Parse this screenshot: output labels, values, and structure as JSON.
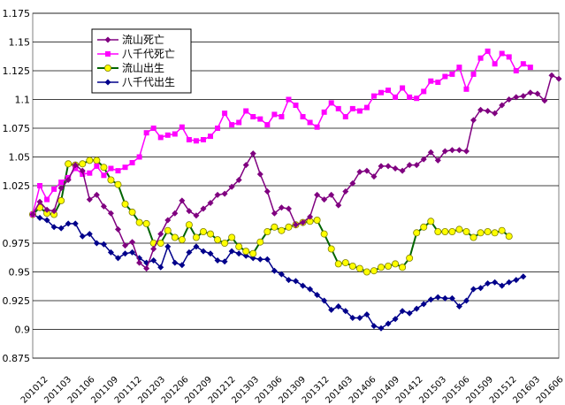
{
  "chart_data": {
    "type": "line",
    "ylim": [
      0.875,
      1.175
    ],
    "yticks": [
      "0.875",
      "0.9",
      "0.925",
      "0.95",
      "0.975",
      "1.025",
      "1.05",
      "1.075",
      "1.1",
      "1.125",
      "1.15",
      "1.175"
    ],
    "x_tick_labels": [
      "201012",
      "201103",
      "201106",
      "201109",
      "201112",
      "201203",
      "201206",
      "201209",
      "201212",
      "201303",
      "201306",
      "201309",
      "201312",
      "201403",
      "201406",
      "201409",
      "201412",
      "201503",
      "201506",
      "201509",
      "201512",
      "201603",
      "201606"
    ],
    "grid": "horizontal",
    "legend_position": "top-left",
    "series": [
      {
        "name": "流山死亡",
        "color": "#800080",
        "marker": "diamond",
        "values": [
          1.0,
          1.011,
          1.004,
          1.003,
          1.023,
          1.03,
          1.043,
          1.038,
          1.013,
          1.017,
          1.007,
          1.001,
          0.987,
          0.973,
          0.976,
          0.958,
          0.953,
          0.97,
          0.983,
          0.995,
          1.001,
          1.012,
          1.003,
          0.999,
          1.005,
          1.01,
          1.017,
          1.018,
          1.024,
          1.03,
          1.043,
          1.053,
          1.035,
          1.02,
          1.001,
          1.006,
          1.005,
          0.991,
          0.993,
          0.998,
          1.017,
          1.013,
          1.017,
          1.008,
          1.02,
          1.027,
          1.037,
          1.038,
          1.033,
          1.042,
          1.042,
          1.04,
          1.038,
          1.043,
          1.043,
          1.048,
          1.054,
          1.047,
          1.055,
          1.056,
          1.056,
          1.055,
          1.082,
          1.091,
          1.09,
          1.088,
          1.095,
          1.1,
          1.102,
          1.103,
          1.106,
          1.105,
          1.099,
          1.121,
          1.118
        ]
      },
      {
        "name": "八千代死亡",
        "color": "#ff00ff",
        "marker": "square",
        "values": [
          1.0,
          1.025,
          1.013,
          1.022,
          1.028,
          1.032,
          1.04,
          1.035,
          1.036,
          1.042,
          1.034,
          1.04,
          1.038,
          1.041,
          1.045,
          1.05,
          1.071,
          1.075,
          1.067,
          1.069,
          1.07,
          1.076,
          1.065,
          1.064,
          1.065,
          1.068,
          1.075,
          1.088,
          1.078,
          1.08,
          1.09,
          1.085,
          1.083,
          1.078,
          1.087,
          1.085,
          1.1,
          1.095,
          1.085,
          1.08,
          1.076,
          1.089,
          1.097,
          1.092,
          1.085,
          1.092,
          1.09,
          1.093,
          1.103,
          1.106,
          1.108,
          1.102,
          1.11,
          1.102,
          1.101,
          1.107,
          1.116,
          1.115,
          1.12,
          1.122,
          1.128,
          1.109,
          1.122,
          1.136,
          1.142,
          1.131,
          1.14,
          1.137,
          1.125,
          1.131,
          1.128
        ]
      },
      {
        "name": "流山出生",
        "color": "#006400",
        "marker_fill": "#ffff00",
        "marker": "circle",
        "values": [
          1.0,
          1.006,
          1.001,
          1.0,
          1.012,
          1.044,
          1.043,
          1.044,
          1.047,
          1.047,
          1.041,
          1.03,
          1.026,
          1.009,
          1.002,
          0.993,
          0.992,
          0.975,
          0.975,
          0.986,
          0.98,
          0.978,
          0.991,
          0.98,
          0.985,
          0.983,
          0.978,
          0.975,
          0.98,
          0.972,
          0.968,
          0.966,
          0.976,
          0.985,
          0.989,
          0.986,
          0.989,
          0.991,
          0.993,
          0.994,
          0.995,
          0.983,
          0.97,
          0.957,
          0.958,
          0.955,
          0.953,
          0.95,
          0.951,
          0.954,
          0.955,
          0.957,
          0.954,
          0.962,
          0.984,
          0.989,
          0.994,
          0.985,
          0.985,
          0.985,
          0.987,
          0.985,
          0.98,
          0.984,
          0.985,
          0.984,
          0.986,
          0.981
        ]
      },
      {
        "name": "八千代出生",
        "color": "#00008b",
        "marker": "diamond",
        "values": [
          1.0,
          0.997,
          0.995,
          0.989,
          0.988,
          0.992,
          0.992,
          0.981,
          0.983,
          0.975,
          0.974,
          0.967,
          0.962,
          0.966,
          0.967,
          0.962,
          0.958,
          0.96,
          0.954,
          0.972,
          0.958,
          0.956,
          0.967,
          0.972,
          0.968,
          0.966,
          0.96,
          0.959,
          0.968,
          0.966,
          0.964,
          0.962,
          0.961,
          0.961,
          0.951,
          0.948,
          0.943,
          0.942,
          0.938,
          0.935,
          0.93,
          0.925,
          0.917,
          0.92,
          0.916,
          0.91,
          0.91,
          0.913,
          0.903,
          0.901,
          0.905,
          0.909,
          0.916,
          0.914,
          0.918,
          0.922,
          0.926,
          0.928,
          0.927,
          0.927,
          0.92,
          0.925,
          0.935,
          0.936,
          0.94,
          0.941,
          0.938,
          0.941,
          0.943,
          0.946
        ]
      }
    ]
  }
}
